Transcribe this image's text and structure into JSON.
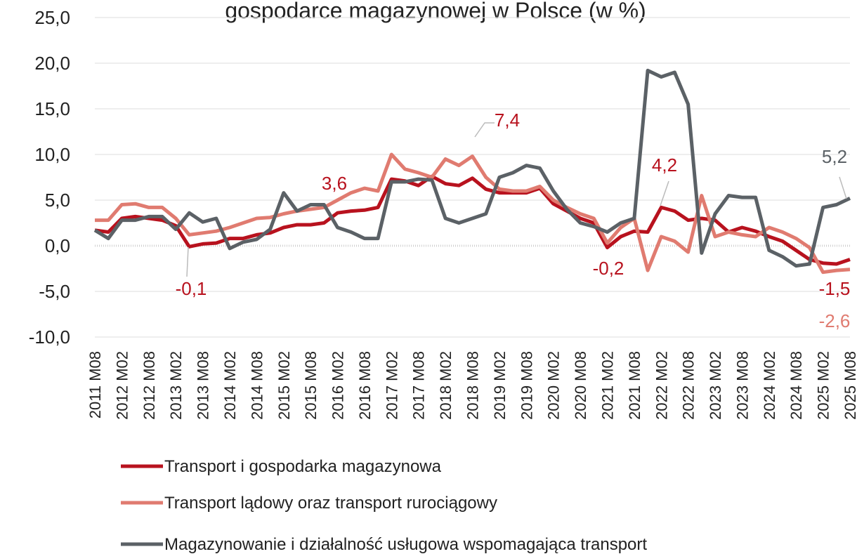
{
  "chart_data": {
    "type": "line",
    "title": "gospodarce magazynowej w Polsce (w %)",
    "categories": [
      "2011 M08",
      null,
      "2012 M02",
      null,
      "2012 M08",
      null,
      "2013 M02",
      null,
      "2013 M08",
      null,
      "2014 M02",
      null,
      "2014 M08",
      null,
      "2015 M02",
      null,
      "2015 M08",
      null,
      "2016 M02",
      null,
      "2016 M08",
      null,
      "2017 M02",
      null,
      "2017 M08",
      null,
      "2018 M02",
      null,
      "2018 M08",
      null,
      "2019 M02",
      null,
      "2019 M08",
      null,
      "2020 M02",
      null,
      "2020 M08",
      null,
      "2021 M02",
      null,
      "2021 M08",
      null,
      "2022 M02",
      null,
      "2022 M08",
      null,
      "2023 M02",
      null,
      "2023 M08",
      null,
      "2024 M02",
      null,
      "2024 M08",
      null,
      "2025 M02",
      null,
      "2025 M08"
    ],
    "series": [
      {
        "name": "Transport i gospodarka magazynowa",
        "color": "#b8121e",
        "values": [
          1.7,
          1.5,
          3.0,
          3.2,
          3.0,
          2.8,
          2.2,
          -0.1,
          0.2,
          0.3,
          0.8,
          0.8,
          1.2,
          1.4,
          2.0,
          2.3,
          2.3,
          2.5,
          3.6,
          3.8,
          3.9,
          4.2,
          7.3,
          7.1,
          6.6,
          7.6,
          6.8,
          6.6,
          7.4,
          6.2,
          5.8,
          5.8,
          5.8,
          6.3,
          4.6,
          3.8,
          3.0,
          2.5,
          -0.2,
          1.0,
          1.6,
          1.5,
          4.2,
          3.8,
          2.8,
          3.0,
          2.8,
          1.5,
          2.0,
          1.6,
          1.0,
          0.5,
          -0.5,
          -1.5,
          -1.9,
          -2.0,
          -1.5
        ]
      },
      {
        "name": "Transport lądowy oraz transport rurociągowy",
        "color": "#e07b70",
        "values": [
          2.8,
          2.8,
          4.5,
          4.6,
          4.2,
          4.2,
          3.0,
          1.2,
          1.4,
          1.6,
          2.0,
          2.5,
          3.0,
          3.1,
          3.5,
          3.8,
          4.0,
          4.2,
          5.0,
          5.8,
          6.3,
          6.0,
          10.0,
          8.4,
          8.0,
          7.5,
          9.5,
          8.8,
          9.8,
          7.5,
          6.2,
          6.0,
          6.0,
          6.5,
          5.0,
          4.2,
          3.5,
          3.0,
          0.3,
          2.0,
          3.0,
          -2.7,
          1.0,
          0.5,
          -0.7,
          5.5,
          1.0,
          1.5,
          1.2,
          1.0,
          2.0,
          1.5,
          0.8,
          -0.2,
          -2.9,
          -2.7,
          -2.6
        ]
      },
      {
        "name": "Magazynowanie i działalność usługowa wspomagająca transport",
        "color": "#5b6166",
        "values": [
          1.7,
          0.8,
          2.8,
          2.8,
          3.2,
          3.2,
          1.8,
          3.6,
          2.6,
          3.0,
          -0.3,
          0.4,
          0.7,
          1.8,
          5.8,
          3.8,
          4.5,
          4.5,
          2.0,
          1.5,
          0.8,
          0.8,
          7.0,
          7.0,
          7.3,
          7.2,
          3.0,
          2.5,
          3.0,
          3.5,
          7.5,
          8.0,
          8.8,
          8.5,
          6.0,
          4.0,
          2.5,
          2.1,
          1.5,
          2.5,
          3.0,
          19.2,
          18.5,
          19.0,
          15.5,
          -0.8,
          3.5,
          5.5,
          5.3,
          5.3,
          -0.5,
          -1.2,
          -2.2,
          -2.0,
          4.2,
          4.5,
          5.2
        ]
      }
    ],
    "ylim": [
      -10,
      25
    ],
    "yticks": [
      {
        "value": -10,
        "label": "-10,0"
      },
      {
        "value": -5,
        "label": "-5,0"
      },
      {
        "value": 0,
        "label": "0,0"
      },
      {
        "value": 5,
        "label": "5,0"
      },
      {
        "value": 10,
        "label": "10,0"
      },
      {
        "value": 15,
        "label": "15,0"
      },
      {
        "value": 20,
        "label": "20,0"
      },
      {
        "value": 25,
        "label": "25,0"
      }
    ],
    "grid": true,
    "annotations": [
      {
        "text": "-0,1",
        "color": "#b8121e"
      },
      {
        "text": "3,6",
        "color": "#b8121e"
      },
      {
        "text": "7,4",
        "color": "#b8121e"
      },
      {
        "text": "4,2",
        "color": "#b8121e"
      },
      {
        "text": "-0,2",
        "color": "#b8121e"
      },
      {
        "text": "5,2",
        "color": "#5b6166"
      },
      {
        "text": "-1,5",
        "color": "#b8121e"
      },
      {
        "text": "-2,6",
        "color": "#e07b70"
      }
    ]
  }
}
